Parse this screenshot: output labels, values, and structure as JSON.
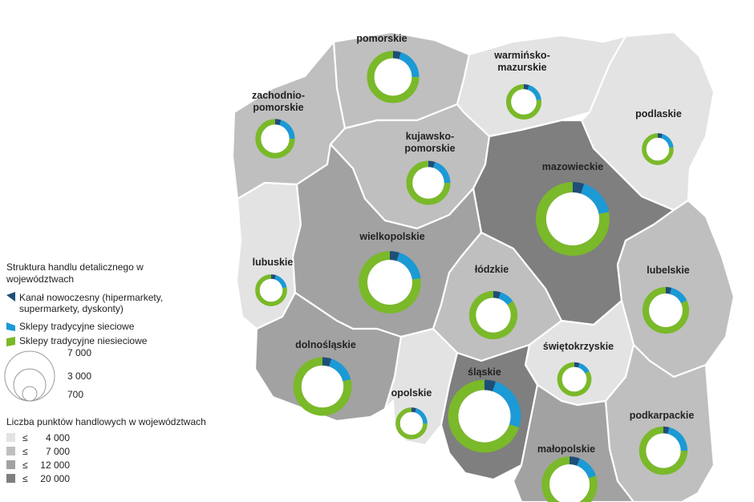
{
  "legend": {
    "structure_title_line1": "Struktura handlu detalicznego w",
    "structure_title_line2": "województwach",
    "series": [
      {
        "line1": "Kanał nowoczesny (hipermarkety,",
        "line2": "supermarkety, dyskonty)",
        "color": "#1f4e79"
      },
      {
        "line1": "Sklepy tradycyjne sieciowe",
        "line2": "",
        "color": "#1b9ad6"
      },
      {
        "line1": "Sklepy tradycyjne niesieciowe",
        "line2": "",
        "color": "#7ab929"
      }
    ],
    "size_title": "",
    "size_labels": [
      "7 000",
      "3 000",
      "700"
    ],
    "size_values": [
      7000,
      3000,
      700
    ],
    "count_title": "Liczba punktów handlowych w województwach",
    "classes": [
      {
        "symbol": "≤",
        "value": "4 000",
        "color": "#e3e3e3"
      },
      {
        "symbol": "≤",
        "value": "7 000",
        "color": "#bfbfbf"
      },
      {
        "symbol": "≤",
        "value": "12 000",
        "color": "#a2a2a2"
      },
      {
        "symbol": "≤",
        "value": "20 000",
        "color": "#7f7f7f"
      }
    ]
  },
  "chart_data": {
    "type": "donut",
    "series_names": [
      "Kanał nowoczesny (hipermarkety, supermarkety, dyskonty)",
      "Sklepy tradycyjne sieciowe",
      "Sklepy tradycyjne niesieciowe"
    ],
    "regions": [
      {
        "name": "pomorskie",
        "label_lines": [
          "pomorskie"
        ],
        "class": 1,
        "total": 3500,
        "shares": [
          0.05,
          0.2,
          0.75
        ]
      },
      {
        "name": "warmińsko-mazurskie",
        "label_lines": [
          "warmińsko-",
          "mazurskie"
        ],
        "class": 0,
        "total": 1600,
        "shares": [
          0.05,
          0.18,
          0.77
        ]
      },
      {
        "name": "zachodniopomorskie",
        "label_lines": [
          "zachodnio-",
          "pomorskie"
        ],
        "class": 1,
        "total": 2000,
        "shares": [
          0.05,
          0.2,
          0.75
        ]
      },
      {
        "name": "podlaskie",
        "label_lines": [
          "podlaskie"
        ],
        "class": 0,
        "total": 1300,
        "shares": [
          0.05,
          0.18,
          0.77
        ]
      },
      {
        "name": "kujawsko-pomorskie",
        "label_lines": [
          "kujawsko-",
          "pomorskie"
        ],
        "class": 1,
        "total": 2500,
        "shares": [
          0.05,
          0.2,
          0.75
        ]
      },
      {
        "name": "mazowieckie",
        "label_lines": [
          "mazowieckie"
        ],
        "class": 3,
        "total": 7000,
        "shares": [
          0.05,
          0.17,
          0.78
        ]
      },
      {
        "name": "lubuskie",
        "label_lines": [
          "lubuskie"
        ],
        "class": 0,
        "total": 1300,
        "shares": [
          0.05,
          0.17,
          0.78
        ]
      },
      {
        "name": "wielkopolskie",
        "label_lines": [
          "wielkopolskie"
        ],
        "class": 2,
        "total": 5000,
        "shares": [
          0.05,
          0.18,
          0.77
        ]
      },
      {
        "name": "łódzkie",
        "label_lines": [
          "łódzkie"
        ],
        "class": 1,
        "total": 3000,
        "shares": [
          0.05,
          0.1,
          0.85
        ]
      },
      {
        "name": "lubelskie",
        "label_lines": [
          "lubelskie"
        ],
        "class": 1,
        "total": 2800,
        "shares": [
          0.04,
          0.14,
          0.82
        ]
      },
      {
        "name": "dolnośląskie",
        "label_lines": [
          "dolnośląskie"
        ],
        "class": 2,
        "total": 4400,
        "shares": [
          0.05,
          0.16,
          0.79
        ]
      },
      {
        "name": "świętokrzyskie",
        "label_lines": [
          "świętokrzyskie"
        ],
        "class": 0,
        "total": 1500,
        "shares": [
          0.05,
          0.12,
          0.83
        ]
      },
      {
        "name": "opolskie",
        "label_lines": [
          "opolskie"
        ],
        "class": 0,
        "total": 1300,
        "shares": [
          0.05,
          0.2,
          0.75
        ]
      },
      {
        "name": "śląskie",
        "label_lines": [
          "śląskie"
        ],
        "class": 3,
        "total": 6800,
        "shares": [
          0.05,
          0.25,
          0.7
        ]
      },
      {
        "name": "podkarpackie",
        "label_lines": [
          "podkarpackie"
        ],
        "class": 1,
        "total": 3000,
        "shares": [
          0.04,
          0.21,
          0.75
        ]
      },
      {
        "name": "małopolskie",
        "label_lines": [
          "małopolskie"
        ],
        "class": 2,
        "total": 4000,
        "shares": [
          0.06,
          0.14,
          0.8
        ]
      }
    ]
  }
}
